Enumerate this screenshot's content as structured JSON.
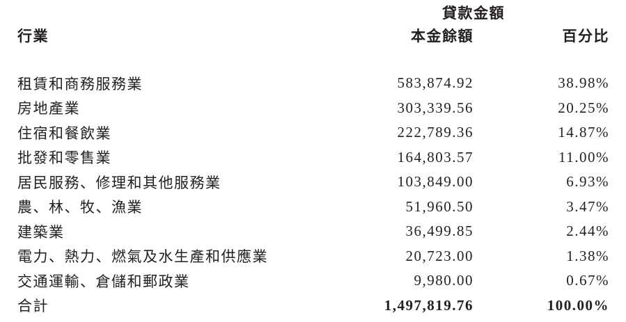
{
  "table": {
    "group_header": "貸款金額",
    "columns": {
      "industry": "行業",
      "principal": "本金餘額",
      "percentage": "百分比"
    },
    "rows": [
      {
        "industry": "租賃和商務服務業",
        "principal": "583,874.92",
        "percentage": "38.98%"
      },
      {
        "industry": "房地產業",
        "principal": "303,339.56",
        "percentage": "20.25%"
      },
      {
        "industry": "住宿和餐飲業",
        "principal": "222,789.36",
        "percentage": "14.87%"
      },
      {
        "industry": "批發和零售業",
        "principal": "164,803.57",
        "percentage": "11.00%"
      },
      {
        "industry": "居民服務、修理和其他服務業",
        "principal": "103,849.00",
        "percentage": "6.93%"
      },
      {
        "industry": "農、林、牧、漁業",
        "principal": "51,960.50",
        "percentage": "3.47%"
      },
      {
        "industry": "建築業",
        "principal": "36,499.85",
        "percentage": "2.44%"
      },
      {
        "industry": "電力、熱力、燃氣及水生產和供應業",
        "principal": "20,723.00",
        "percentage": "1.38%"
      },
      {
        "industry": "交通運輸、倉儲和郵政業",
        "principal": "9,980.00",
        "percentage": "0.67%"
      }
    ],
    "total": {
      "industry": "合計",
      "principal": "1,497,819.76",
      "percentage": "100.00%"
    }
  },
  "chart_data": {
    "type": "table",
    "title": "貸款金額",
    "columns": [
      "行業",
      "本金餘額",
      "百分比"
    ],
    "categories": [
      "租賃和商務服務業",
      "房地產業",
      "住宿和餐飲業",
      "批發和零售業",
      "居民服務、修理和其他服務業",
      "農、林、牧、漁業",
      "建築業",
      "電力、熱力、燃氣及水生產和供應業",
      "交通運輸、倉儲和郵政業"
    ],
    "principal_values": [
      583874.92,
      303339.56,
      222789.36,
      164803.57,
      103849.0,
      51960.5,
      36499.85,
      20723.0,
      9980.0
    ],
    "percentage_values": [
      38.98,
      20.25,
      14.87,
      11.0,
      6.93,
      3.47,
      2.44,
      1.38,
      0.67
    ],
    "total_principal": 1497819.76,
    "total_percentage": 100.0
  },
  "colors": {
    "text": "#231f20",
    "background": "#ffffff"
  }
}
